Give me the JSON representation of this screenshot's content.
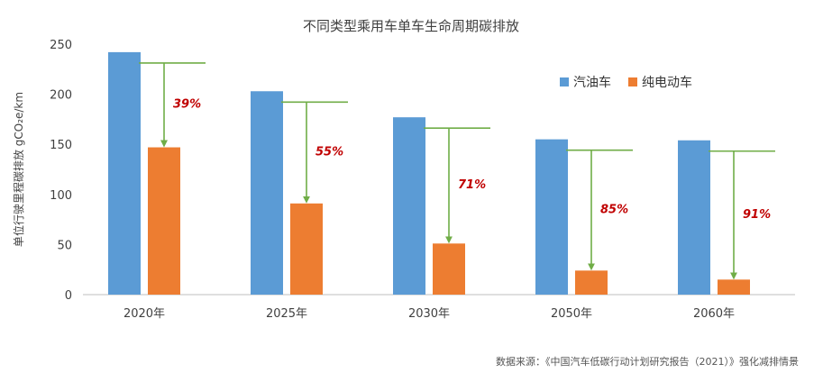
{
  "colors": {
    "gasoline": "#5b9bd5",
    "electric": "#ed7d31",
    "arrow": "#70ad47",
    "pct": "#c00000",
    "axis": "#bfbfbf",
    "text": "#404040"
  },
  "chart_data": {
    "type": "bar",
    "title": "不同类型乘用车单车生命周期碳排放",
    "ylabel": "单位行驶里程碳排放 gCO₂e/km",
    "xlabel": "",
    "ylim": [
      0,
      250
    ],
    "yticks": [
      "0",
      "50",
      "100",
      "150",
      "200",
      "250"
    ],
    "categories": [
      "2020年",
      "2025年",
      "2030年",
      "2050年",
      "2060年"
    ],
    "series": [
      {
        "name": "汽油车",
        "values": [
          242,
          203,
          177,
          155,
          154
        ]
      },
      {
        "name": "纯电动车",
        "values": [
          147,
          91,
          51,
          24,
          15
        ]
      }
    ],
    "reduction_labels": [
      "39%",
      "55%",
      "71%",
      "85%",
      "91%"
    ],
    "legend_position": "right",
    "grid": false
  },
  "source_note": "数据来源：《中国汽车低碳行动计划研究报告（2021）》强化减排情景"
}
